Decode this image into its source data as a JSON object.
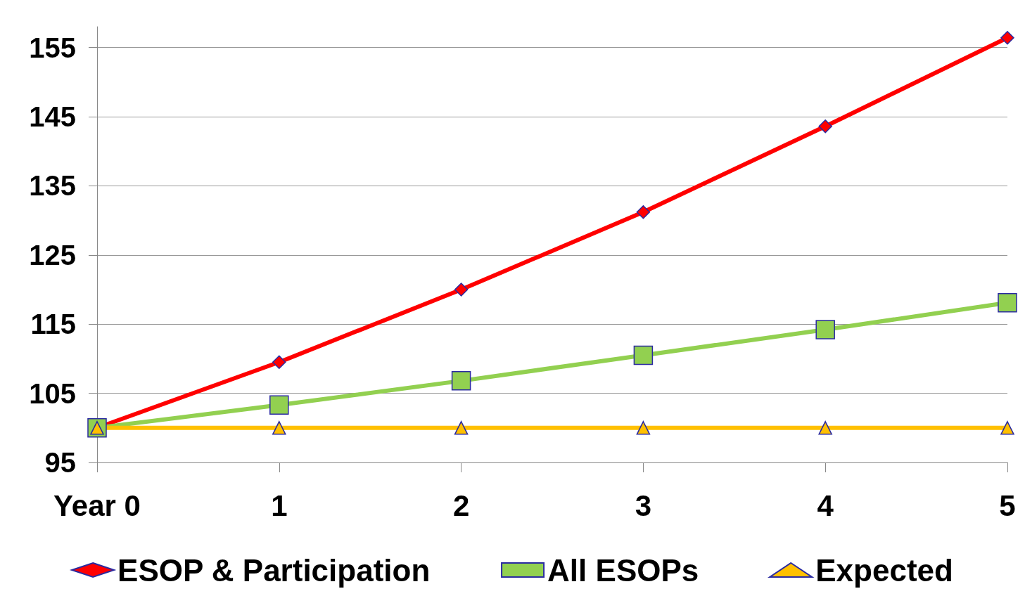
{
  "chart_data": {
    "type": "line",
    "categories": [
      "Year 0",
      "1",
      "2",
      "3",
      "4",
      "5"
    ],
    "series": [
      {
        "name": "ESOP & Participation",
        "color": "#ff0000",
        "marker": "diamond",
        "values": [
          100,
          109.5,
          120,
          131.2,
          143.6,
          156.4
        ]
      },
      {
        "name": "All ESOPs",
        "color": "#92d050",
        "marker": "square",
        "values": [
          100,
          103.3,
          106.8,
          110.5,
          114.2,
          118.1
        ]
      },
      {
        "name": "Expected",
        "color": "#ffc000",
        "marker": "triangle",
        "values": [
          100,
          100,
          100,
          100,
          100,
          100
        ]
      }
    ],
    "ylim": [
      95,
      158
    ],
    "yticks": [
      95,
      105,
      115,
      125,
      135,
      145,
      155
    ],
    "grid": "y",
    "legend": "bottom",
    "line_style": "solid"
  }
}
